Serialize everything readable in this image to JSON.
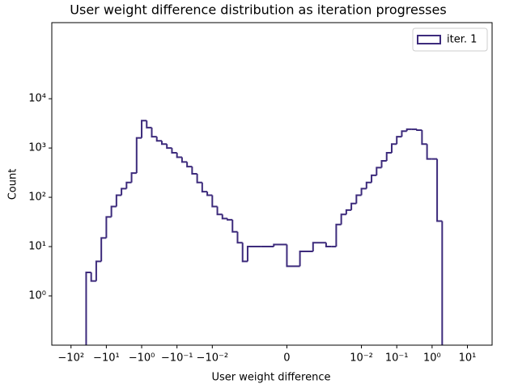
{
  "chart_data": {
    "type": "histogram",
    "title": "User weight difference distribution as iteration progresses",
    "xlabel": "User weight difference",
    "ylabel": "Count",
    "xscale": "symlog",
    "linthresh": 0.001,
    "linscale": 1,
    "yscale": "log",
    "xlim": [
      -350,
      50
    ],
    "ylim": [
      0.1,
      350000
    ],
    "xticks": [
      {
        "value": -100,
        "label": "−10²"
      },
      {
        "value": -10,
        "label": "−10¹"
      },
      {
        "value": -1,
        "label": "−10⁰"
      },
      {
        "value": -0.1,
        "label": "−10⁻¹"
      },
      {
        "value": -0.01,
        "label": "−10⁻²"
      },
      0,
      {
        "value": 0.01,
        "label": "10⁻²"
      },
      {
        "value": 0.1,
        "label": "10⁻¹"
      },
      {
        "value": 1,
        "label": "10⁰"
      },
      {
        "value": 10,
        "label": "10¹"
      }
    ],
    "yticks": [
      {
        "value": 1,
        "label": "10⁰"
      },
      {
        "value": 10,
        "label": "10¹"
      },
      {
        "value": 100,
        "label": "10²"
      },
      {
        "value": 1000,
        "label": "10³"
      },
      {
        "value": 10000,
        "label": "10⁴"
      }
    ],
    "legend": "upper right",
    "bins": [
      -100,
      -71.97,
      -51.79,
      -37.28,
      -26.83,
      -19.31,
      -13.89,
      -10,
      -7.197,
      -5.179,
      -3.728,
      -2.683,
      -1.931,
      -1.389,
      -1,
      -0.7197,
      -0.5179,
      -0.3728,
      -0.2683,
      -0.1931,
      -0.1389,
      -0.1,
      -0.07197,
      -0.05179,
      -0.03728,
      -0.02683,
      -0.01931,
      -0.01389,
      -0.01,
      -0.007197,
      -0.005179,
      -0.003728,
      -0.002683,
      -0.001931,
      -0.001389,
      -0.001,
      -0.000667,
      -0.000333,
      0,
      0.000333,
      0.000667,
      0.001,
      0.001389,
      0.001931,
      0.002683,
      0.003728,
      0.005179,
      0.007197,
      0.01,
      0.01389,
      0.01931,
      0.02683,
      0.03728,
      0.05179,
      0.07197,
      0.1,
      0.1389,
      0.1931,
      0.2683,
      0.3728,
      0.5179,
      0.7197,
      1,
      1.389,
      1.931,
      2.683,
      3.728,
      5.179,
      7.197,
      10,
      13.89,
      19.31,
      26.83,
      37.28,
      51.79
    ],
    "series": [
      {
        "name": "iter. 1",
        "color": "#3d2b7c",
        "values": [
          0,
          0,
          0,
          3,
          2,
          5,
          15,
          40,
          65,
          110,
          150,
          200,
          310,
          1600,
          3600,
          2600,
          1700,
          1400,
          1200,
          1000,
          800,
          650,
          520,
          420,
          300,
          200,
          130,
          110,
          65,
          45,
          37,
          35,
          20,
          12,
          5,
          10,
          10,
          11,
          4,
          8,
          12,
          10,
          10,
          28,
          45,
          55,
          75,
          110,
          150,
          200,
          280,
          400,
          550,
          800,
          1200,
          1700,
          2200,
          2400,
          2400,
          2300,
          1200,
          600,
          600,
          33,
          0,
          0,
          0,
          0,
          0,
          0,
          0,
          0,
          0,
          0
        ]
      }
    ]
  }
}
